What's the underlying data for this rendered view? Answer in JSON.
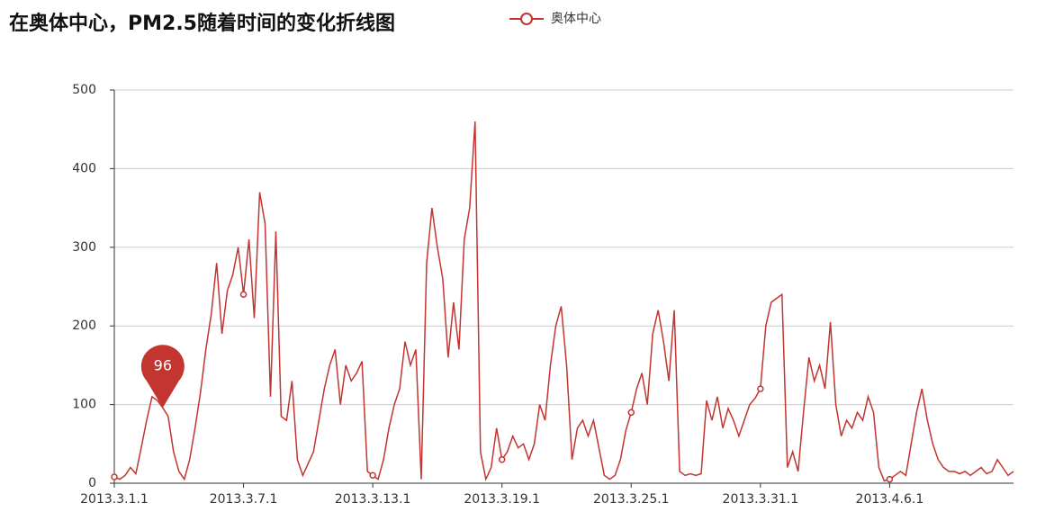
{
  "chart_data": {
    "type": "line",
    "title": "在奥体中心，PM2.5随着时间的变化折线图",
    "categories": [
      "2013.3.1.1",
      null,
      null,
      null,
      null,
      null,
      null,
      null,
      null,
      null,
      null,
      null,
      null,
      null,
      null,
      null,
      null,
      null,
      null,
      null,
      null,
      null,
      null,
      null,
      "2013.3.7.1",
      null,
      null,
      null,
      null,
      null,
      null,
      null,
      null,
      null,
      null,
      null,
      null,
      null,
      null,
      null,
      null,
      null,
      null,
      null,
      null,
      null,
      null,
      null,
      "2013.3.13.1",
      null,
      null,
      null,
      null,
      null,
      null,
      null,
      null,
      null,
      null,
      null,
      null,
      null,
      null,
      null,
      null,
      null,
      null,
      null,
      null,
      null,
      null,
      null,
      "2013.3.19.1",
      null,
      null,
      null,
      null,
      null,
      null,
      null,
      null,
      null,
      null,
      null,
      null,
      null,
      null,
      null,
      null,
      null,
      null,
      null,
      null,
      null,
      null,
      null,
      "2013.3.25.1",
      null,
      null,
      null,
      null,
      null,
      null,
      null,
      null,
      null,
      null,
      null,
      null,
      null,
      null,
      null,
      null,
      null,
      null,
      null,
      null,
      null,
      null,
      null,
      "2013.3.31.1",
      null,
      null,
      null,
      null,
      null,
      null,
      null,
      null,
      null,
      null,
      null,
      null,
      null,
      null,
      null,
      null,
      null,
      null,
      null,
      null,
      null,
      null,
      null,
      "2013.4.6.1",
      null,
      null,
      null,
      null,
      null,
      null,
      null,
      null,
      null,
      null,
      null,
      null,
      null,
      null,
      null,
      null,
      null,
      null,
      null,
      null,
      null,
      null,
      null
    ],
    "series": [
      {
        "name": "奥体中心",
        "color": "#c23531",
        "values": [
          8,
          5,
          10,
          20,
          12,
          45,
          80,
          110,
          105,
          96,
          85,
          40,
          15,
          5,
          30,
          70,
          115,
          170,
          215,
          280,
          190,
          245,
          265,
          300,
          240,
          310,
          210,
          370,
          330,
          110,
          320,
          85,
          80,
          130,
          30,
          10,
          25,
          40,
          80,
          120,
          150,
          170,
          100,
          150,
          130,
          140,
          155,
          15,
          10,
          5,
          30,
          70,
          100,
          120,
          180,
          150,
          170,
          5,
          280,
          350,
          300,
          260,
          160,
          230,
          170,
          310,
          350,
          460,
          40,
          5,
          20,
          70,
          30,
          40,
          60,
          45,
          50,
          30,
          50,
          100,
          80,
          150,
          200,
          225,
          150,
          30,
          70,
          80,
          60,
          80,
          45,
          10,
          5,
          10,
          30,
          67,
          90,
          120,
          140,
          100,
          190,
          220,
          180,
          130,
          220,
          15,
          10,
          12,
          10,
          12,
          105,
          80,
          110,
          70,
          95,
          80,
          60,
          80,
          100,
          108,
          120,
          200,
          230,
          235,
          240,
          20,
          40,
          15,
          90,
          160,
          130,
          150,
          120,
          205,
          100,
          60,
          80,
          70,
          90,
          80,
          110,
          90,
          20,
          3,
          5,
          10,
          15,
          10,
          50,
          90,
          120,
          80,
          50,
          30,
          20,
          15,
          15,
          12,
          15,
          10,
          15,
          20,
          12,
          15,
          30,
          20,
          10,
          15
        ]
      }
    ],
    "mark_point": 96,
    "ylim": [
      0,
      500
    ],
    "yticks": [
      0,
      100,
      200,
      300,
      400,
      500
    ],
    "grid": true
  }
}
